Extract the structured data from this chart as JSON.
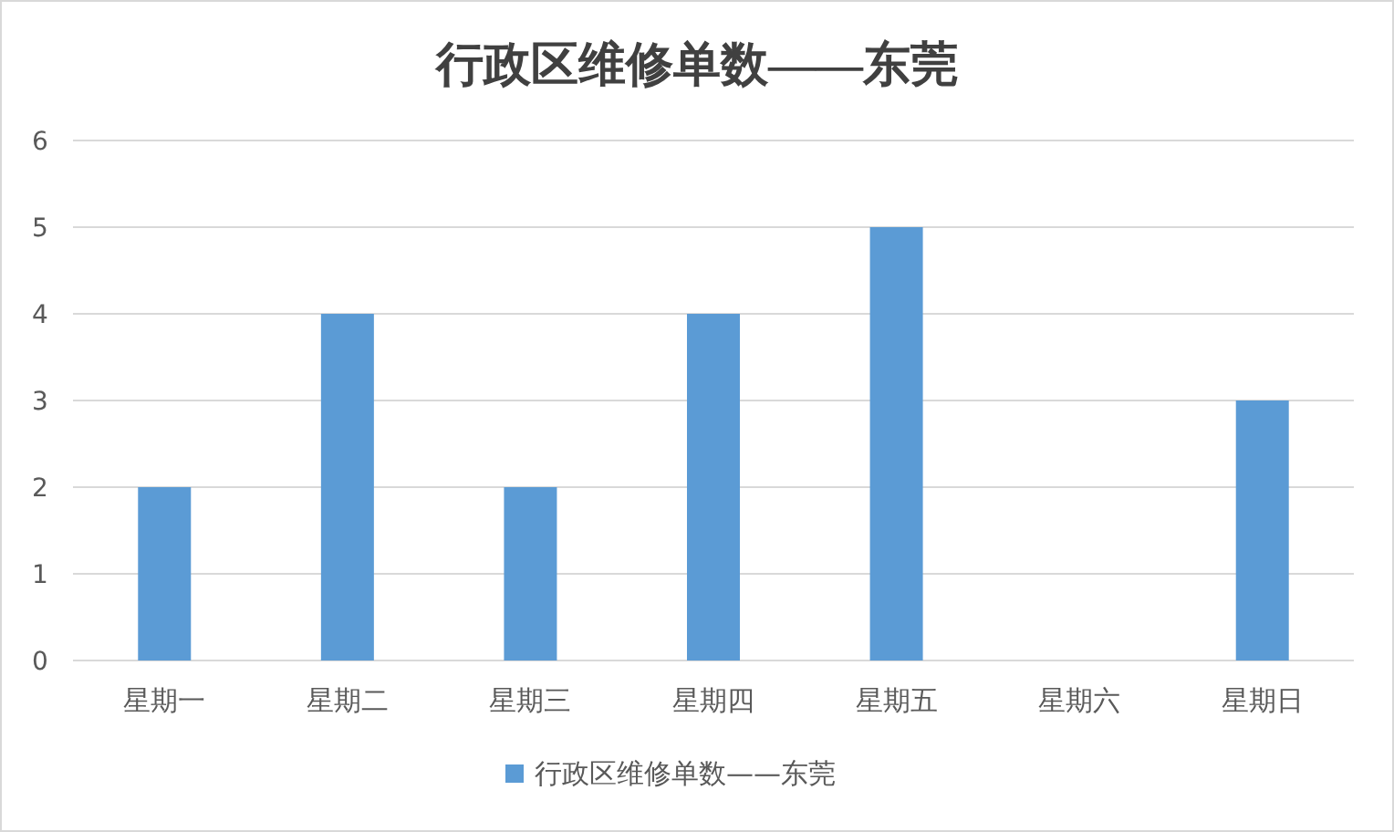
{
  "chart_data": {
    "type": "bar",
    "title": "行政区维修单数——东莞",
    "categories": [
      "星期一",
      "星期二",
      "星期三",
      "星期四",
      "星期五",
      "星期六",
      "星期日"
    ],
    "series": [
      {
        "name": "行政区维修单数——东莞",
        "color": "#5b9bd5",
        "values": [
          2,
          4,
          2,
          4,
          5,
          0,
          3
        ]
      }
    ],
    "ylim": [
      0,
      6
    ],
    "yticks": [
      0,
      1,
      2,
      3,
      4,
      5,
      6
    ],
    "grid": "y",
    "legend": "bottom"
  }
}
